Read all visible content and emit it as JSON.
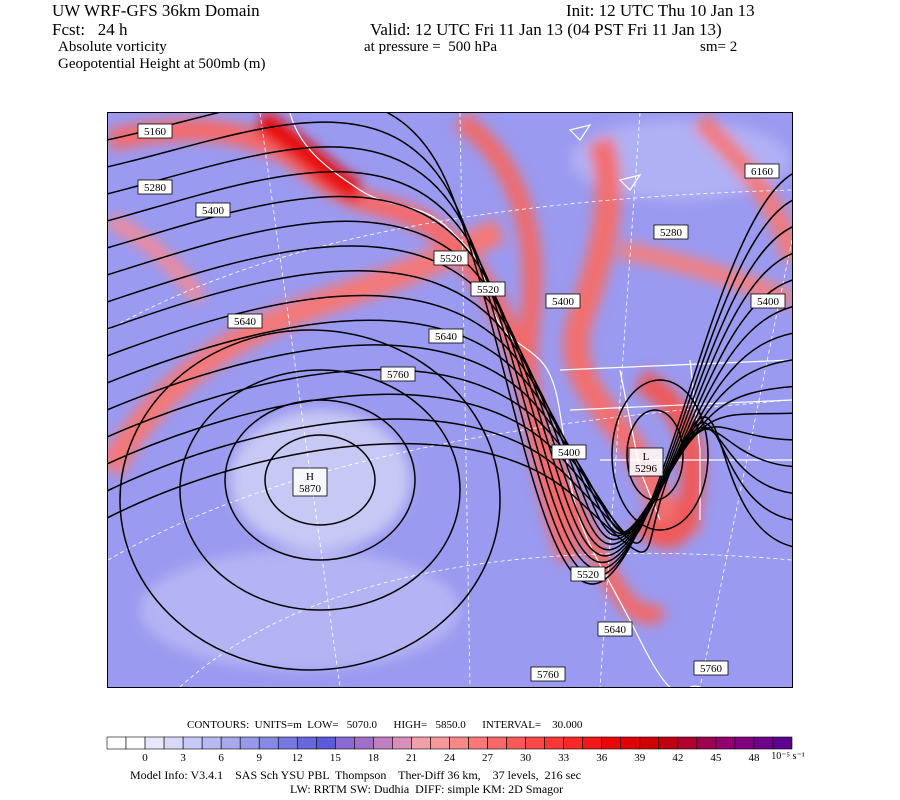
{
  "header": {
    "title": "UW WRF-GFS 36km Domain",
    "init": "Init: 12 UTC Thu 10 Jan 13",
    "fcst": "Fcst:   24 h",
    "valid": "Valid: 12 UTC Fri 11 Jan 13 (04 PST Fri 11 Jan 13)",
    "field1": "Absolute vorticity",
    "pressure": "at pressure =  500 hPa",
    "sm": "sm= 2",
    "field2": "Geopotential Height at 500mb (m)"
  },
  "map": {
    "contour_labels": [
      "5160",
      "5280",
      "5400",
      "5520",
      "5520",
      "5640",
      "5640",
      "5760",
      "5400",
      "5280",
      "6160",
      "5400",
      "5400",
      "5520",
      "5640",
      "5760",
      "5760"
    ],
    "high": {
      "symbol": "H",
      "value": "5870"
    },
    "low": {
      "symbol": "L",
      "value": "5296"
    }
  },
  "colorbar": {
    "colors": [
      "#ffffff",
      "#ffffff",
      "#e8e8fc",
      "#d8d8f8",
      "#c8c8f6",
      "#b8b8f2",
      "#a8a8ee",
      "#9898ea",
      "#8888e6",
      "#7878e2",
      "#6868de",
      "#5a5ada",
      "#8a6ad0",
      "#a070c8",
      "#c080c0",
      "#d890b8",
      "#f0a0a8",
      "#f89898",
      "#f88888",
      "#f87878",
      "#f86868",
      "#f85858",
      "#f84848",
      "#f83838",
      "#f82828",
      "#f01818",
      "#e80808",
      "#e00000",
      "#d00000",
      "#c00010",
      "#b00030",
      "#a00050",
      "#900070",
      "#800080",
      "#70008a",
      "#600090"
    ],
    "ticks": [
      0,
      3,
      6,
      9,
      12,
      15,
      18,
      21,
      24,
      27,
      30,
      33,
      36,
      39,
      42,
      45,
      48
    ],
    "units": "10⁻⁵ s⁻¹"
  },
  "footer": {
    "contours": "CONTOURS:  UNITS=m  LOW=   5070.0      HIGH=   5850.0      INTERVAL=    30.000",
    "model_info": "Model Info: V3.4.1    SAS Sch YSU PBL  Thompson    Ther-Diff 36 km,    37 levels,  216 sec",
    "physics": "LW: RRTM SW: Dudhia  DIFF: simple KM: 2D Smagor"
  }
}
